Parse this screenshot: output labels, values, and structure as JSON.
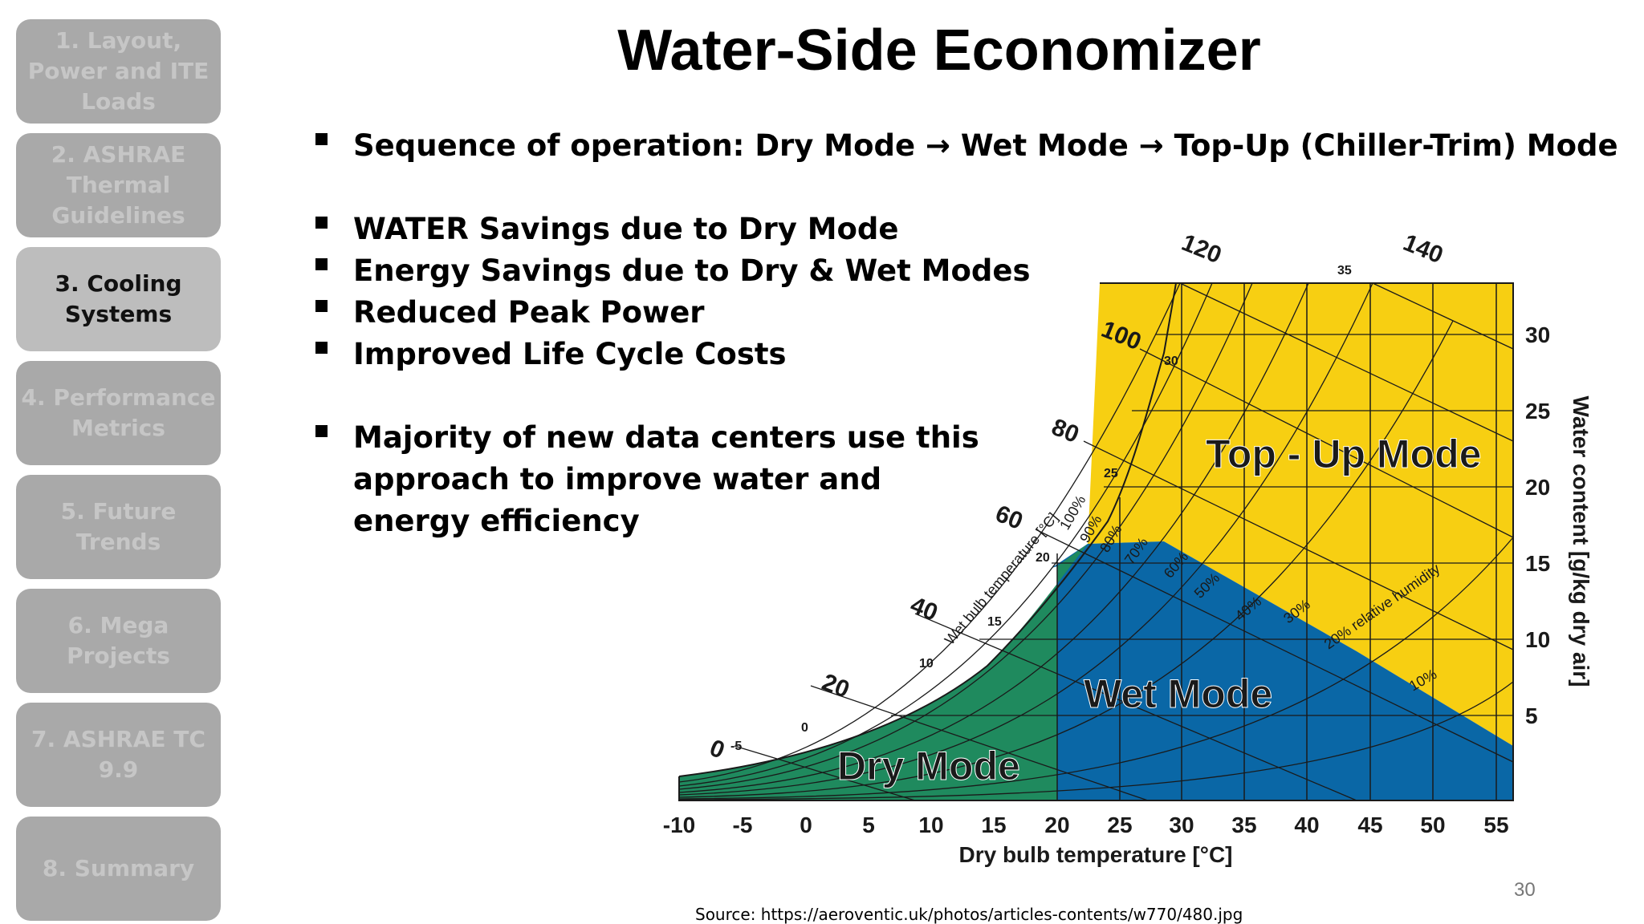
{
  "sidebar": {
    "items": [
      {
        "label": "1. Layout, Power and ITE Loads"
      },
      {
        "label": "2. ASHRAE Thermal Guidelines"
      },
      {
        "label": "3. Cooling Systems"
      },
      {
        "label": "4. Performance Metrics"
      },
      {
        "label": "5. Future Trends"
      },
      {
        "label": "6. Mega Projects"
      },
      {
        "label": "7. ASHRAE TC 9.9"
      },
      {
        "label": "8. Summary"
      }
    ],
    "active_index": 2
  },
  "title": "Water-Side Economizer",
  "bullets": {
    "sequence": "Sequence of operation: Dry Mode → Wet Mode → Top-Up (Chiller-Trim) Mode",
    "benefits": [
      "WATER Savings due to Dry Mode",
      "Energy Savings due to Dry & Wet Modes",
      "Reduced Peak Power",
      "Improved Life Cycle Costs"
    ],
    "majority_lines": [
      "Majority of new data centers use this",
      "approach to improve water and",
      "energy efficiency"
    ]
  },
  "diagram": {
    "x_axis_label": "Dry bulb temperature [°C]",
    "y_axis_label": "Water content [g/kg dry air]",
    "x_ticks": [
      "-10",
      "-5",
      "0",
      "5",
      "10",
      "15",
      "20",
      "25",
      "30",
      "35",
      "40",
      "45",
      "50",
      "55"
    ],
    "y_ticks": [
      "5",
      "10",
      "15",
      "20",
      "25",
      "30"
    ],
    "enthalpy_labels": [
      "0",
      "20",
      "40",
      "60",
      "80",
      "100",
      "120",
      "140"
    ],
    "wet_bulb_labels": [
      "-5",
      "0",
      "10",
      "15",
      "20",
      "25",
      "30",
      "35"
    ],
    "wet_bulb_axis_label": "Wet bulb temperature [°C]",
    "rh_labels": [
      "100%",
      "90%",
      "80%",
      "70%",
      "60%",
      "50%",
      "40%",
      "30%",
      "20% relative humidity",
      "10%"
    ],
    "regions": {
      "dry": "Dry Mode",
      "wet": "Wet Mode",
      "topup": "Top - Up Mode"
    },
    "colors": {
      "dry": "#1f8a5e",
      "wet": "#0a67a6",
      "topup": "#f7cf12",
      "lines": "#1a1a1a"
    }
  },
  "source": "Source: https://aeroventic.uk/photos/articles-contents/w770/480.jpg",
  "page_number": "30"
}
